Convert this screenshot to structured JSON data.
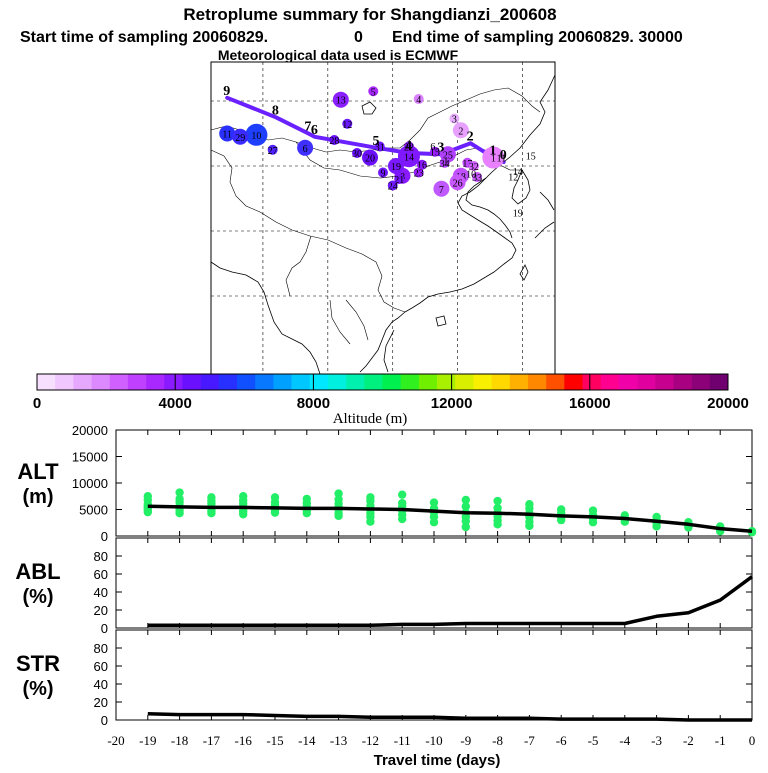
{
  "header": {
    "title": "Retroplume summary for Shangdianzi_200608",
    "start_label": "Start time of sampling 20060829.",
    "start_value": "0",
    "end_label": "End time of sampling 20060829. 30000",
    "met_label": "Meteorological data used is ECMWF"
  },
  "colors": {
    "plume_line": "#6a20ff",
    "scatter": "#22ee66",
    "line": "#000000",
    "scale": [
      "#f7e0ff",
      "#f0c8ff",
      "#e6a8ff",
      "#dc88ff",
      "#d060ff",
      "#c040ff",
      "#a828ff",
      "#8a1aff",
      "#6a10ff",
      "#4818ff",
      "#2830ff",
      "#1050ff",
      "#0878ff",
      "#00a0ff",
      "#00c8ff",
      "#00e8ff",
      "#00f0e0",
      "#00f0b0",
      "#00f080",
      "#00f050",
      "#30f020",
      "#70f000",
      "#a8f000",
      "#d8f000",
      "#f8f000",
      "#ffd800",
      "#ffb000",
      "#ff8800",
      "#ff5000",
      "#ff0000",
      "#ff0060",
      "#ff0090",
      "#f000a8",
      "#e000a0",
      "#c80090",
      "#a80080",
      "#8c0078",
      "#700070"
    ]
  },
  "colorbar": {
    "min": 0,
    "max": 20000,
    "ticks": [
      "0",
      "4000",
      "8000",
      "12000",
      "16000",
      "20000"
    ],
    "label": "Altitude (m)"
  },
  "map": {
    "plume_labels": [
      {
        "t": "0",
        "lon": 117.1,
        "lat": 40.6,
        "c": "#e88cff"
      },
      {
        "t": "1",
        "lon": 115.5,
        "lat": 41.3,
        "c": "#d870ff"
      },
      {
        "t": "2",
        "lon": 112.0,
        "lat": 43.5,
        "c": "#c858ff"
      },
      {
        "t": "3",
        "lon": 107.5,
        "lat": 41.8,
        "c": "#9a20ff"
      },
      {
        "t": "4",
        "lon": 102.5,
        "lat": 42.0,
        "c": "#7a18ff"
      },
      {
        "t": "5",
        "lon": 97.5,
        "lat": 42.8,
        "c": "#7a18ff"
      },
      {
        "t": "6",
        "lon": 88.0,
        "lat": 44.5,
        "c": "#6a10ff"
      },
      {
        "t": "7",
        "lon": 87.0,
        "lat": 45.0,
        "c": "#6a10ff"
      },
      {
        "t": "8",
        "lon": 82.0,
        "lat": 47.5,
        "c": "#6a10ff"
      },
      {
        "t": "9",
        "lon": 74.5,
        "lat": 50.5,
        "c": "#6a10ff"
      }
    ],
    "dots": [
      {
        "t": "1",
        "lon": 115.5,
        "lat": 41.3,
        "c": "#e880ff",
        "s": "l"
      },
      {
        "t": "2",
        "lon": 110.5,
        "lat": 45.5,
        "c": "#e8a0ff",
        "s": "m"
      },
      {
        "t": "3",
        "lon": 109.5,
        "lat": 47.3,
        "c": "#e8b0ff",
        "s": "s"
      },
      {
        "t": "4",
        "lon": 104.0,
        "lat": 50.3,
        "c": "#d880ff",
        "s": "s"
      },
      {
        "t": "5",
        "lon": 97.0,
        "lat": 51.5,
        "c": "#a828ff",
        "s": "s"
      },
      {
        "t": "6",
        "lon": 86.5,
        "lat": 42.8,
        "c": "#4030ff",
        "s": "m"
      },
      {
        "t": "7",
        "lon": 107.5,
        "lat": 36.5,
        "c": "#c058ff",
        "s": "m"
      },
      {
        "t": "8",
        "lon": 101.5,
        "lat": 38.5,
        "c": "#8a1aff",
        "s": "m"
      },
      {
        "t": "9",
        "lon": 98.5,
        "lat": 39.0,
        "c": "#7018ff",
        "s": "s"
      },
      {
        "t": "10",
        "lon": 79.0,
        "lat": 44.8,
        "c": "#1f3fff",
        "s": "l"
      },
      {
        "t": "11",
        "lon": 74.5,
        "lat": 45.0,
        "c": "#2a30ff",
        "s": "m"
      },
      {
        "t": "12",
        "lon": 93.0,
        "lat": 46.5,
        "c": "#6a18ff",
        "s": "s"
      },
      {
        "t": "13",
        "lon": 92.0,
        "lat": 50.2,
        "c": "#8a20ff",
        "s": "m"
      },
      {
        "t": "14",
        "lon": 102.5,
        "lat": 41.5,
        "c": "#8018ff",
        "s": "l"
      },
      {
        "t": "15",
        "lon": 106.5,
        "lat": 42.2,
        "c": "#9a20ff",
        "s": "s"
      },
      {
        "t": "16",
        "lon": 104.5,
        "lat": 40.2,
        "c": "#8a18ff",
        "s": "s"
      },
      {
        "t": "17",
        "lon": 111.5,
        "lat": 40.5,
        "c": "#c048ff",
        "s": "s"
      },
      {
        "t": "18",
        "lon": 110.5,
        "lat": 38.5,
        "c": "#c050ff",
        "s": "m"
      },
      {
        "t": "19",
        "lon": 100.5,
        "lat": 40.0,
        "c": "#7a18ff",
        "s": "m"
      },
      {
        "t": "20",
        "lon": 96.5,
        "lat": 41.3,
        "c": "#6a10ff",
        "s": "m"
      },
      {
        "t": "21",
        "lon": 101.0,
        "lat": 38.0,
        "c": "#7818ff",
        "s": "s"
      },
      {
        "t": "22",
        "lon": 102.5,
        "lat": 43.0,
        "c": "#8a18ff",
        "s": "s"
      },
      {
        "t": "23",
        "lon": 104.0,
        "lat": 39.0,
        "c": "#9a20ff",
        "s": "s"
      },
      {
        "t": "24",
        "lon": 100.0,
        "lat": 37.0,
        "c": "#7018ff",
        "s": "s"
      },
      {
        "t": "25",
        "lon": 108.5,
        "lat": 41.8,
        "c": "#b040ff",
        "s": "m"
      },
      {
        "t": "26",
        "lon": 110.0,
        "lat": 37.5,
        "c": "#c858ff",
        "s": "m"
      },
      {
        "t": "27",
        "lon": 81.5,
        "lat": 42.5,
        "c": "#5020ff",
        "s": "s"
      },
      {
        "t": "28",
        "lon": 91.0,
        "lat": 44.0,
        "c": "#6a10ff",
        "s": "s"
      },
      {
        "t": "29",
        "lon": 76.5,
        "lat": 44.5,
        "c": "#3a2aff",
        "s": "m"
      },
      {
        "t": "30",
        "lon": 94.5,
        "lat": 42.0,
        "c": "#6a10ff",
        "s": "s"
      },
      {
        "t": "31",
        "lon": 98.0,
        "lat": 43.0,
        "c": "#7018ff",
        "s": "s"
      },
      {
        "t": "32",
        "lon": 112.5,
        "lat": 40.0,
        "c": "#d060ff",
        "s": "s"
      },
      {
        "t": "33",
        "lon": 113.0,
        "lat": 38.3,
        "c": "#c858ff",
        "s": "s"
      },
      {
        "t": "34",
        "lon": 108.0,
        "lat": 40.5,
        "c": "#b040ff",
        "s": "s"
      }
    ],
    "small_labels": [
      {
        "t": "6",
        "lon": 105.8,
        "lat": 42.5
      },
      {
        "t": "1",
        "lon": 107.8,
        "lat": 40.2
      },
      {
        "t": "10",
        "lon": 111.3,
        "lat": 38.2
      },
      {
        "t": "11",
        "lon": 116.0,
        "lat": 40.7
      },
      {
        "t": "12",
        "lon": 117.8,
        "lat": 37.8
      },
      {
        "t": "14",
        "lon": 118.5,
        "lat": 38.6
      },
      {
        "t": "15",
        "lon": 120.5,
        "lat": 41.0
      },
      {
        "t": "19",
        "lon": 118.5,
        "lat": 32.2
      }
    ]
  },
  "chart_data": {
    "type": "line",
    "xlabel": "Travel time (days)",
    "x_ticks": [
      "-20",
      "-19",
      "-18",
      "-17",
      "-16",
      "-15",
      "-14",
      "-13",
      "-12",
      "-11",
      "-10",
      "-9",
      "-8",
      "-7",
      "-6",
      "-5",
      "-4",
      "-3",
      "-2",
      "-1",
      "0"
    ],
    "x": [
      -19,
      -18,
      -17,
      -16,
      -15,
      -14,
      -13,
      -12,
      -11,
      -10,
      -9,
      -8,
      -7,
      -6,
      -5,
      -4,
      -3,
      -2,
      -1,
      0
    ],
    "panels": [
      {
        "name": "ALT",
        "ylabel_1": "ALT",
        "ylabel_2": "(m)",
        "ylim": [
          0,
          20000
        ],
        "y_ticks": [
          "0",
          "5000",
          "10000",
          "15000",
          "20000"
        ],
        "tick_values": [
          0,
          5000,
          10000,
          15000,
          20000
        ],
        "series": [
          {
            "name": "mean altitude",
            "values": [
              5600,
              5500,
              5400,
              5400,
              5300,
              5200,
              5200,
              5100,
              5000,
              4700,
              4400,
              4300,
              4100,
              3800,
              3600,
              3300,
              2800,
              2200,
              1400,
              900
            ]
          }
        ],
        "scatter": [
          {
            "x": -19,
            "y": [
              7500,
              6800,
              6000,
              5600,
              5200,
              4900,
              4500
            ]
          },
          {
            "x": -18,
            "y": [
              8200,
              7000,
              6400,
              5700,
              5300,
              4800,
              4300
            ]
          },
          {
            "x": -17,
            "y": [
              7300,
              6600,
              6100,
              5600,
              5200,
              4700,
              4300
            ]
          },
          {
            "x": -16,
            "y": [
              7500,
              6700,
              6100,
              5600,
              5100,
              4600,
              4100
            ]
          },
          {
            "x": -15,
            "y": [
              7300,
              6400,
              5800,
              5300,
              4900,
              4400
            ]
          },
          {
            "x": -14,
            "y": [
              7000,
              6200,
              5600,
              5200,
              4800,
              4300
            ]
          },
          {
            "x": -13,
            "y": [
              8000,
              6900,
              6100,
              5500,
              5000,
              4300,
              3800
            ]
          },
          {
            "x": -12,
            "y": [
              7300,
              6600,
              5700,
              5000,
              4300,
              3600,
              2700
            ]
          },
          {
            "x": -11,
            "y": [
              7800,
              6200,
              5600,
              4800,
              4000,
              3200
            ]
          },
          {
            "x": -10,
            "y": [
              6300,
              5200,
              4400,
              3600,
              2600
            ]
          },
          {
            "x": -9,
            "y": [
              6800,
              5600,
              4400,
              3600,
              2800,
              1700
            ]
          },
          {
            "x": -8,
            "y": [
              6600,
              5300,
              4400,
              3700,
              2900,
              2200
            ]
          },
          {
            "x": -7,
            "y": [
              6000,
              5200,
              4300,
              3600,
              2700,
              1900
            ]
          },
          {
            "x": -6,
            "y": [
              5000,
              4400,
              3500,
              3000
            ]
          },
          {
            "x": -5,
            "y": [
              4800,
              4000,
              3300,
              2600
            ]
          },
          {
            "x": -4,
            "y": [
              3900,
              3200,
              2700
            ]
          },
          {
            "x": -3,
            "y": [
              3600,
              3000,
              2500,
              1800
            ]
          },
          {
            "x": -2,
            "y": [
              2600,
              2000,
              1600
            ]
          },
          {
            "x": -1,
            "y": [
              1800,
              1300,
              900
            ]
          },
          {
            "x": 0,
            "y": [
              900,
              700
            ]
          }
        ]
      },
      {
        "name": "ABL",
        "ylabel_1": "ABL",
        "ylabel_2": "(%)",
        "ylim": [
          0,
          100
        ],
        "y_ticks": [
          "0",
          "20",
          "40",
          "60",
          "80"
        ],
        "tick_values": [
          0,
          20,
          40,
          60,
          80
        ],
        "series": [
          {
            "name": "boundary layer fraction",
            "values": [
              3,
              3,
              3,
              3,
              3,
              3,
              3,
              3,
              4,
              4,
              5,
              5,
              5,
              5,
              5,
              5,
              13,
              17,
              31,
              57
            ]
          }
        ]
      },
      {
        "name": "STR",
        "ylabel_1": "STR",
        "ylabel_2": "(%)",
        "ylim": [
          0,
          100
        ],
        "y_ticks": [
          "0",
          "20",
          "40",
          "60",
          "80"
        ],
        "tick_values": [
          0,
          20,
          40,
          60,
          80
        ],
        "series": [
          {
            "name": "stratosphere fraction",
            "values": [
              7,
              6,
              6,
              6,
              5,
              4,
              4,
              3,
              3,
              3,
              2,
              2,
              2,
              1,
              1,
              1,
              1,
              0,
              0,
              0
            ]
          }
        ]
      }
    ]
  }
}
